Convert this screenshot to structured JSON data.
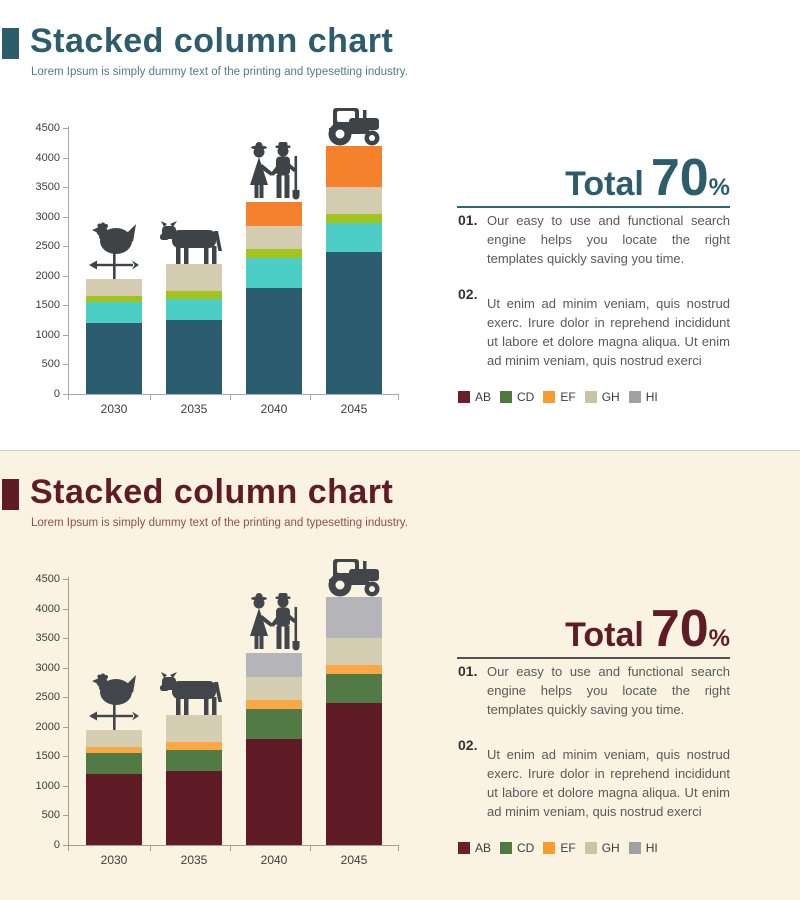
{
  "page": {
    "divider_color": "#cfcfcf"
  },
  "legend": [
    {
      "label": "AB",
      "color": "#6b1f28"
    },
    {
      "label": "CD",
      "color": "#4e7a3f"
    },
    {
      "label": "EF",
      "color": "#f99c30"
    },
    {
      "label": "GH",
      "color": "#c9c4a4"
    },
    {
      "label": "HI",
      "color": "#a1a1a4"
    }
  ],
  "sections": [
    {
      "title": "Stacked column chart",
      "subtitle": "Lorem Ipsum is simply dummy text of the printing and typesetting industry.",
      "total": {
        "label": "Total",
        "value": "70",
        "percent": "%"
      },
      "points": [
        {
          "num": "01.",
          "text": "Our easy to use and functional search engine helps you locate the right templates quickly saving you time."
        },
        {
          "num": "02.",
          "text": "Ut enim ad minim veniam, quis nostrud exerc. Irure dolor in reprehend incididunt ut labore et dolore magna aliqua. Ut enim ad minim veniam, quis nostrud exerci"
        }
      ],
      "theme": {
        "bg": "#ffffff",
        "accent": "#2d5d6b",
        "subtitle_color": "#4f7d8b",
        "body_text": "#58595b",
        "number_color": "#323232",
        "rule_color": "#2d6573",
        "axis_color": "#a9a9a9",
        "label_color": "#3d3d3d",
        "icon_color": "#3e4347"
      }
    },
    {
      "title": "Stacked column chart",
      "subtitle": "Lorem Ipsum is simply dummy text of the printing and typesetting industry.",
      "total": {
        "label": "Total",
        "value": "70",
        "percent": "%"
      },
      "points": [
        {
          "num": "01.",
          "text": "Our easy to use and functional search engine helps you locate the right templates quickly saving you time."
        },
        {
          "num": "02.",
          "text": "Ut enim ad minim veniam, quis nostrud exerc. Irure dolor in reprehend incididunt ut labore et dolore magna aliqua. Ut enim ad minim veniam, quis nostrud exerci"
        }
      ],
      "theme": {
        "bg": "#faf3e1",
        "accent": "#5f1c27",
        "subtitle_color": "#925048",
        "body_text": "#58595b",
        "number_color": "#323232",
        "rule_color": "#515151",
        "axis_color": "#a39f92",
        "label_color": "#3d3d3d",
        "icon_color": "#42464b"
      }
    }
  ],
  "chart_data": [
    {
      "type": "bar",
      "stacked": true,
      "title": "",
      "categories": [
        "2030",
        "2035",
        "2040",
        "2045"
      ],
      "series": [
        {
          "name": "AB",
          "values": [
            1200,
            1250,
            1800,
            2400
          ],
          "color": "#2b5d6e"
        },
        {
          "name": "CD",
          "values": [
            350,
            350,
            500,
            500
          ],
          "color": "#4ccdc6"
        },
        {
          "name": "EF",
          "values": [
            100,
            150,
            150,
            150
          ],
          "color": "#a3c41c"
        },
        {
          "name": "GH",
          "values": [
            300,
            450,
            400,
            450
          ],
          "color": "#d3ccb0"
        },
        {
          "name": "HI",
          "values": [
            0,
            0,
            400,
            700
          ],
          "color": "#f5812c"
        }
      ],
      "totals": [
        1950,
        2200,
        3250,
        4200
      ],
      "ylim": [
        0,
        4500
      ],
      "ytick_step": 500,
      "grid": false,
      "legend_position": "bottom-right",
      "icons": [
        "rooster-weathervane",
        "cow",
        "farmer-couple",
        "tractor"
      ]
    },
    {
      "type": "bar",
      "stacked": true,
      "title": "",
      "categories": [
        "2030",
        "2035",
        "2040",
        "2045"
      ],
      "series": [
        {
          "name": "AB",
          "values": [
            1200,
            1250,
            1800,
            2400
          ],
          "color": "#5f1c27"
        },
        {
          "name": "CD",
          "values": [
            350,
            350,
            500,
            500
          ],
          "color": "#517a45"
        },
        {
          "name": "EF",
          "values": [
            100,
            150,
            150,
            150
          ],
          "color": "#faa843"
        },
        {
          "name": "GH",
          "values": [
            300,
            450,
            400,
            450
          ],
          "color": "#d5ceb3"
        },
        {
          "name": "HI",
          "values": [
            0,
            0,
            400,
            700
          ],
          "color": "#b4b4b9"
        }
      ],
      "totals": [
        1950,
        2200,
        3250,
        4200
      ],
      "ylim": [
        0,
        4500
      ],
      "ytick_step": 500,
      "grid": false,
      "legend_position": "bottom-right",
      "icons": [
        "rooster-weathervane",
        "cow",
        "farmer-couple",
        "tractor"
      ]
    }
  ]
}
